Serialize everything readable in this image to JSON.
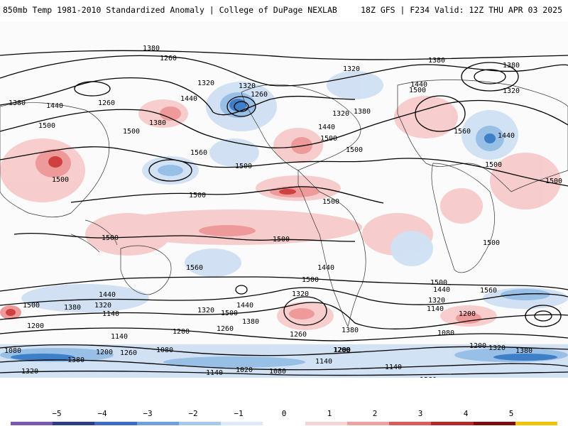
{
  "header": {
    "title": "850mb Temp 1981-2010 Standardized Anomaly | College of DuPage NEXLAB",
    "run": "18Z GFS | F234 Valid: 12Z THU APR 03 2025"
  },
  "colors": {
    "warm_light": "#f6c8c8",
    "warm_mid": "#ef9a9a",
    "warm_dark": "#d04040",
    "cold_light": "#cfe0f3",
    "cold_mid": "#98bfe6",
    "cold_dark": "#3f7fc8",
    "contour": "#000000"
  },
  "map": {
    "contour_labels": [
      {
        "text": "1380"
      },
      {
        "text": "1260"
      },
      {
        "text": "1320"
      },
      {
        "text": "1320"
      },
      {
        "text": "1260"
      },
      {
        "text": "1380"
      },
      {
        "text": "1440"
      },
      {
        "text": "1260"
      },
      {
        "text": "1440"
      },
      {
        "text": "1380"
      },
      {
        "text": "1500"
      },
      {
        "text": "1500"
      },
      {
        "text": "1560"
      },
      {
        "text": "1500"
      },
      {
        "text": "1500"
      },
      {
        "text": "1320"
      },
      {
        "text": "1380"
      },
      {
        "text": "1440"
      },
      {
        "text": "1500"
      },
      {
        "text": "1320"
      },
      {
        "text": "1380"
      },
      {
        "text": "1440"
      },
      {
        "text": "1500"
      },
      {
        "text": "1380"
      },
      {
        "text": "1320"
      },
      {
        "text": "1560"
      },
      {
        "text": "1440"
      },
      {
        "text": "1500"
      },
      {
        "text": "1500"
      },
      {
        "text": "1500"
      },
      {
        "text": "1500"
      },
      {
        "text": "1500"
      },
      {
        "text": "1500"
      },
      {
        "text": "1500"
      },
      {
        "text": "1560"
      },
      {
        "text": "1500"
      },
      {
        "text": "1440"
      },
      {
        "text": "1380"
      },
      {
        "text": "1320"
      },
      {
        "text": "1140"
      },
      {
        "text": "1200"
      },
      {
        "text": "1500"
      },
      {
        "text": "1440"
      },
      {
        "text": "1380"
      },
      {
        "text": "1320"
      },
      {
        "text": "1260"
      },
      {
        "text": "1200"
      },
      {
        "text": "1140"
      },
      {
        "text": "1080"
      },
      {
        "text": "1380"
      },
      {
        "text": "1200"
      },
      {
        "text": "1260"
      },
      {
        "text": "1080"
      },
      {
        "text": "1320"
      },
      {
        "text": "1140"
      },
      {
        "text": "1020"
      },
      {
        "text": "1080"
      },
      {
        "text": "1140"
      },
      {
        "text": "1200"
      },
      {
        "text": "1260"
      },
      {
        "text": "1500"
      },
      {
        "text": "1440"
      },
      {
        "text": "1320"
      },
      {
        "text": "1260"
      },
      {
        "text": "1380"
      },
      {
        "text": "1200"
      },
      {
        "text": "1140"
      },
      {
        "text": "1500"
      },
      {
        "text": "1440"
      },
      {
        "text": "1560"
      },
      {
        "text": "1320"
      },
      {
        "text": "1140"
      },
      {
        "text": "1200"
      },
      {
        "text": "1080"
      },
      {
        "text": "1200"
      },
      {
        "text": "1320"
      },
      {
        "text": "1380"
      },
      {
        "text": "1500"
      }
    ]
  },
  "colorbar": {
    "ticks": [
      "−5",
      "−4",
      "−3",
      "−2",
      "−1",
      "0",
      "1",
      "2",
      "3",
      "4",
      "5"
    ],
    "segments": [
      "#7a57b3",
      "#2b3d87",
      "#3c6cc4",
      "#6fa0dc",
      "#a9c9ec",
      "#dceaf7",
      "#ffffff",
      "#f7d4d4",
      "#eca2a2",
      "#d95b5b",
      "#b52828",
      "#7e0c0c",
      "#f2c20a"
    ]
  }
}
